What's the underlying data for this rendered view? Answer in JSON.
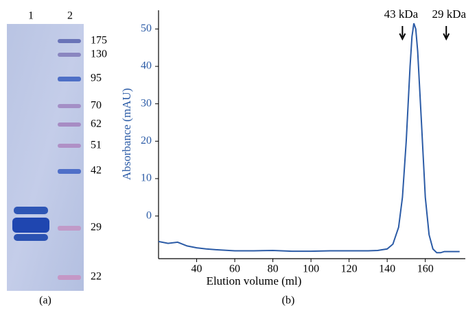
{
  "gel": {
    "lanes": [
      "1",
      "2"
    ],
    "markers": [
      "175",
      "130",
      "95",
      "70",
      "62",
      "51",
      "42",
      "29",
      "22"
    ],
    "caption": "(a)"
  },
  "chart_data": {
    "type": "line",
    "caption": "(b)",
    "y_label": "Absorbance (mAU)",
    "x_label": "Elution volume (ml)",
    "color": "#2b5ba6",
    "x": [
      20,
      25,
      30,
      35,
      40,
      45,
      50,
      60,
      70,
      80,
      90,
      100,
      110,
      120,
      130,
      135,
      140,
      143,
      146,
      148,
      150,
      152,
      153,
      154,
      155,
      156,
      158,
      160,
      162,
      164,
      166,
      168,
      170,
      175,
      178
    ],
    "values": [
      -6.8,
      -7.3,
      -7.0,
      -8.0,
      -8.5,
      -8.8,
      -9.0,
      -9.3,
      -9.3,
      -9.2,
      -9.4,
      -9.4,
      -9.3,
      -9.3,
      -9.3,
      -9.2,
      -8.8,
      -7.5,
      -3,
      5,
      20,
      40,
      48,
      51.5,
      50,
      44,
      25,
      5,
      -5,
      -8.8,
      -9.8,
      -9.8,
      -9.5,
      -9.5,
      -9.5
    ],
    "xlim": [
      20,
      181
    ],
    "ylim": [
      -11.4,
      55
    ],
    "xticks": [
      40,
      60,
      80,
      100,
      120,
      140,
      160
    ],
    "yticks": [
      0,
      10,
      20,
      30,
      40,
      50
    ],
    "annotations": [
      {
        "text": "43 kDa",
        "x": 148
      },
      {
        "text": "29 kDa",
        "x": 171
      }
    ]
  }
}
